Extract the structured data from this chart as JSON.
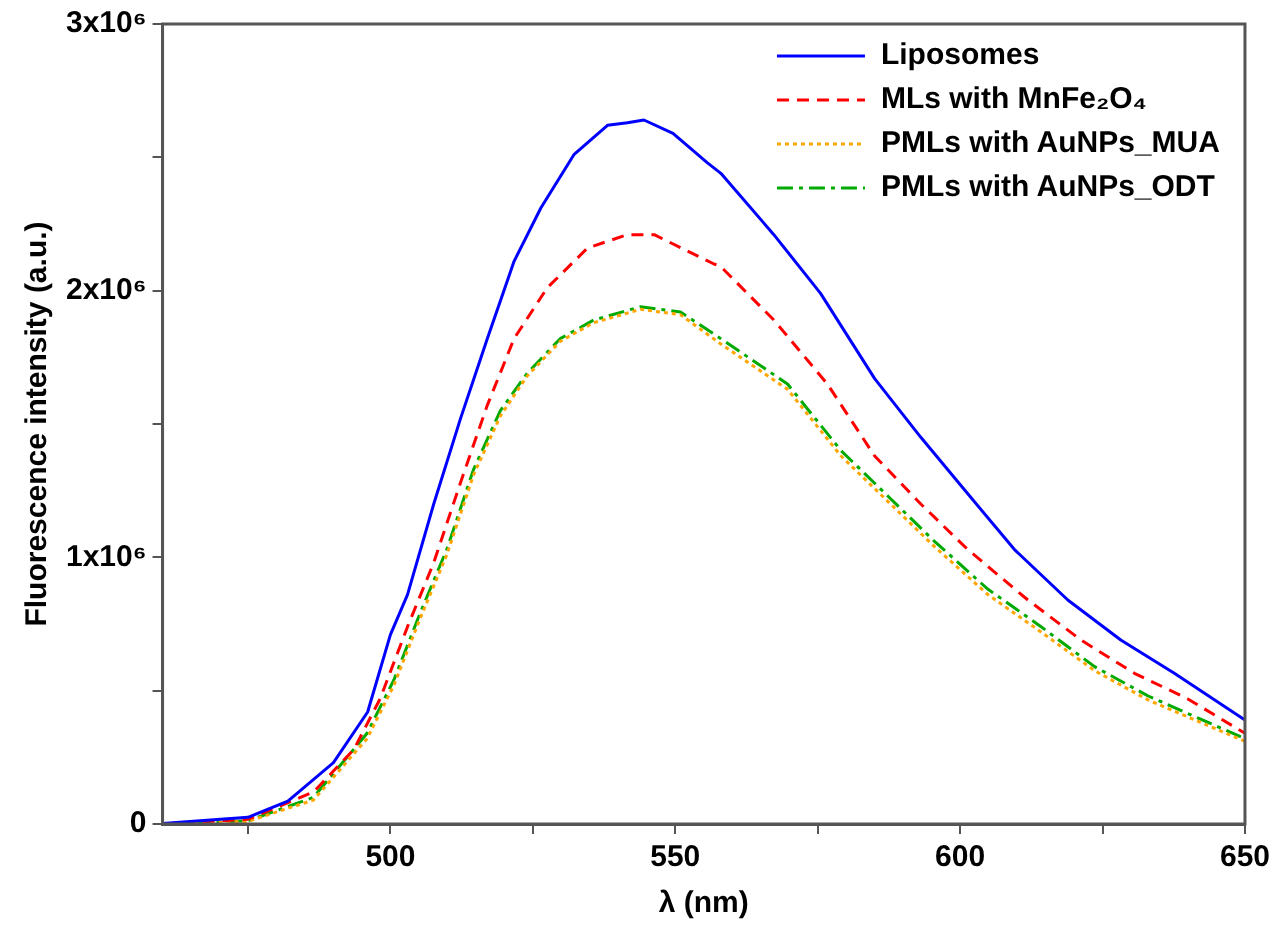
{
  "chart_data": {
    "type": "line",
    "xlabel": "λ (nm)",
    "ylabel": "Fluorescence intensity (a.u.)",
    "xlim": [
      460,
      650
    ],
    "xticks": [
      {
        "value": 475,
        "label": null
      },
      500,
      {
        "value": 525,
        "label": null
      },
      550,
      {
        "value": 575,
        "label": null
      },
      600,
      {
        "value": 625,
        "label": null
      },
      650
    ],
    "ylim": [
      0,
      3000000
    ],
    "yticks": [
      0,
      {
        "value": 500000,
        "label": null
      },
      {
        "value": 1000000,
        "label": "1x10⁶"
      },
      {
        "value": 1500000,
        "label": null
      },
      {
        "value": 2000000,
        "label": "2x10⁶"
      },
      {
        "value": 2500000,
        "label": null
      },
      {
        "value": 3000000,
        "label": "3x10⁶"
      }
    ],
    "grid": false,
    "legend": "top right",
    "marker": "none",
    "series": [
      {
        "name": "Liposomes",
        "color": "#0000ff",
        "line_style": "solid",
        "x": [
          460,
          475,
          482,
          490,
          496,
          500,
          503,
          507.6,
          512.3,
          517,
          521.7,
          526.4,
          532.2,
          538.1,
          541.6,
          544.5,
          549.6,
          555.6,
          558,
          567.3,
          575.5,
          585,
          593.1,
          600.1,
          609.5,
          618.9,
          628.2,
          637.6,
          650
        ],
        "values": [
          2000,
          25000,
          86000,
          230000,
          420000,
          710000,
          860000,
          1200000,
          1520000,
          1820000,
          2110000,
          2310000,
          2510000,
          2620000,
          2630000,
          2640000,
          2590000,
          2480000,
          2440000,
          2210000,
          1990000,
          1670000,
          1450000,
          1270000,
          1030000,
          840000,
          690000,
          565000,
          390000
        ]
      },
      {
        "name": "MLs with MnFe₂O₄",
        "color": "#ff0000",
        "line_style": "dashed",
        "x": [
          460,
          475,
          486.5,
          493.6,
          498.2,
          503,
          507.6,
          512.3,
          517,
          521.7,
          527.5,
          534.6,
          541.6,
          546.3,
          556.8,
          558,
          567.3,
          576.7,
          585,
          593.1,
          601.3,
          611.9,
          621.2,
          630.6,
          639.9,
          650
        ],
        "values": [
          0,
          18000,
          120000,
          280000,
          470000,
          740000,
          980000,
          1280000,
          1570000,
          1820000,
          2010000,
          2160000,
          2210000,
          2210000,
          2100000,
          2090000,
          1890000,
          1650000,
          1380000,
          1200000,
          1030000,
          840000,
          690000,
          565000,
          470000,
          340000
        ]
      },
      {
        "name": "PMLs with AuNPs_MUA",
        "color": "#ffa500",
        "line_style": "dotted",
        "x": [
          460,
          475,
          486.5,
          495.9,
          500.6,
          505.2,
          509.9,
          514.6,
          519.3,
          524,
          529.8,
          535.7,
          543.9,
          550.9,
          558,
          569.7,
          579.1,
          587.3,
          595.5,
          604.9,
          614.2,
          623.6,
          633,
          650
        ],
        "values": [
          0,
          10000,
          90000,
          320000,
          520000,
          770000,
          1010000,
          1310000,
          1530000,
          1680000,
          1810000,
          1880000,
          1930000,
          1910000,
          1800000,
          1630000,
          1380000,
          1210000,
          1040000,
          860000,
          720000,
          575000,
          465000,
          310000
        ]
      },
      {
        "name": "PMLs with AuNPs_ODT",
        "color": "#00aa00",
        "line_style": "dashdot",
        "x": [
          460,
          475,
          486.5,
          495.9,
          500.6,
          505.2,
          509.9,
          514.6,
          519.3,
          524,
          529.8,
          535.7,
          543.9,
          550.9,
          558,
          569.7,
          579.1,
          587.3,
          595.5,
          604.9,
          614.2,
          623.6,
          633,
          650
        ],
        "values": [
          0,
          12000,
          100000,
          340000,
          540000,
          790000,
          1030000,
          1330000,
          1550000,
          1690000,
          1820000,
          1890000,
          1940000,
          1920000,
          1820000,
          1650000,
          1400000,
          1230000,
          1060000,
          880000,
          740000,
          590000,
          480000,
          320000
        ]
      }
    ]
  }
}
